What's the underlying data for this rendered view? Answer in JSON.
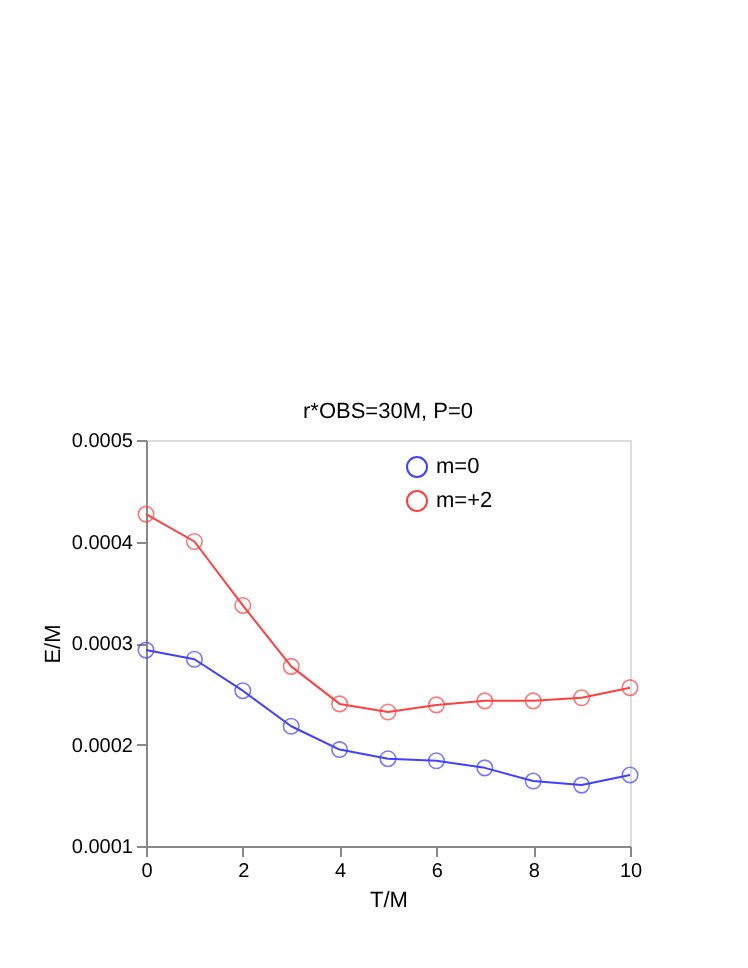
{
  "chart_data": {
    "type": "line",
    "title": "r*OBS=30M, P=0",
    "xlabel": "T/M",
    "ylabel": "E/M",
    "x": [
      0,
      1,
      2,
      3,
      4,
      5,
      6,
      7,
      8,
      9,
      10
    ],
    "series": [
      {
        "name": "m=0",
        "color": "#4040ff",
        "values": [
          0.000293,
          0.000284,
          0.000253,
          0.000218,
          0.000195,
          0.000186,
          0.000184,
          0.000177,
          0.000164,
          0.00016,
          0.00017
        ]
      },
      {
        "name": "m=+2",
        "color": "#ff4040",
        "values": [
          0.000427,
          0.0004,
          0.000337,
          0.000277,
          0.00024,
          0.000232,
          0.000239,
          0.000243,
          0.000243,
          0.000246,
          0.000256
        ]
      }
    ],
    "xlim": [
      0,
      10
    ],
    "xticks": [
      0,
      2,
      4,
      6,
      8,
      10
    ],
    "ylim": [
      0.0001,
      0.0005
    ],
    "yticks": [
      0.0001,
      0.0002,
      0.0003,
      0.0004,
      0.0005
    ],
    "marker": "circle",
    "line_style": "solid",
    "grid": false,
    "legend": "top"
  }
}
